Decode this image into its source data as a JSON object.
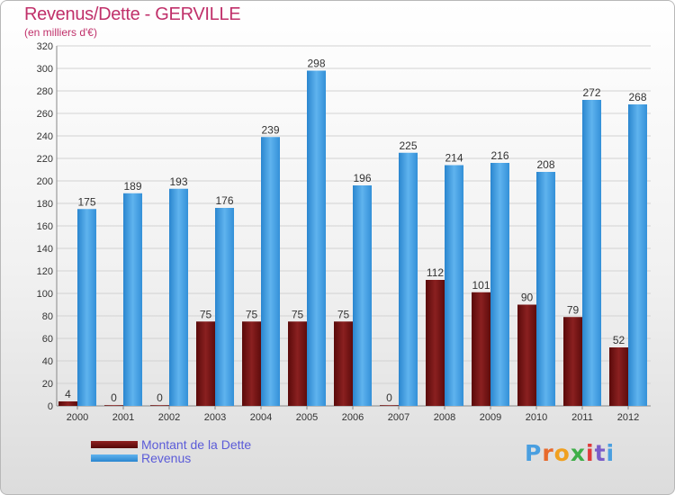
{
  "chart_data": {
    "type": "bar",
    "title": "Revenus/Dette - GERVILLE",
    "subtitle": "(en milliers d'€)",
    "xlabel": "",
    "ylabel": "",
    "categories": [
      "2000",
      "2001",
      "2002",
      "2003",
      "2004",
      "2005",
      "2006",
      "2007",
      "2008",
      "2009",
      "2010",
      "2011",
      "2012"
    ],
    "series": [
      {
        "name": "Montant de la Dette",
        "color": "#7a1515",
        "values": [
          4,
          0,
          0,
          75,
          75,
          75,
          75,
          0,
          112,
          101,
          90,
          79,
          52
        ]
      },
      {
        "name": "Revenus",
        "color": "#3d9be3",
        "values": [
          175,
          189,
          193,
          176,
          239,
          298,
          196,
          225,
          214,
          216,
          208,
          272,
          268
        ]
      }
    ],
    "ylim": [
      0,
      320
    ],
    "ytick_step": 20,
    "grid": true,
    "legend_position": "bottom-left"
  },
  "brand": {
    "letters": [
      "P",
      "r",
      "o",
      "x",
      "i",
      "t",
      "i"
    ],
    "colors": [
      "#4a9fe0",
      "#e86a2c",
      "#f0a020",
      "#3fae49",
      "#e03a3a",
      "#7a5cc8",
      "#4a9fe0"
    ]
  }
}
